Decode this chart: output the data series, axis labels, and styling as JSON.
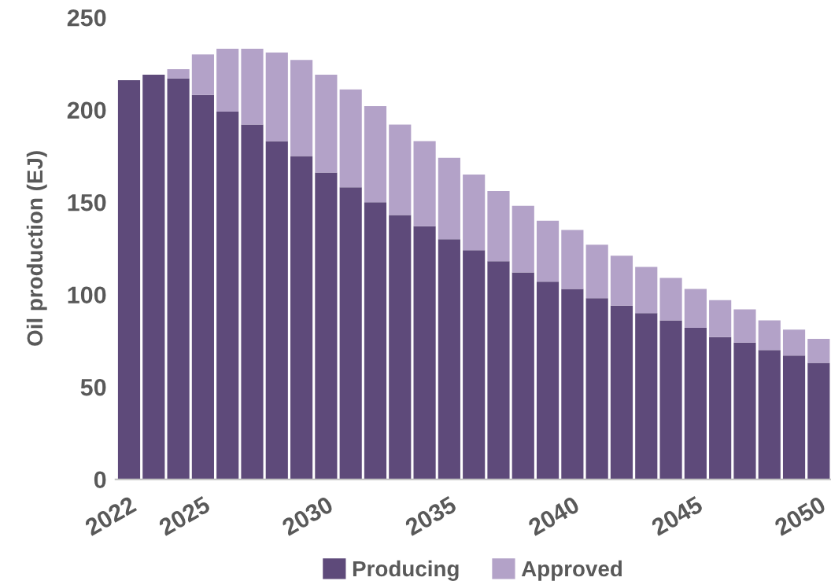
{
  "chart_data": {
    "type": "bar",
    "stacked": true,
    "ylabel": "Oil production (EJ)",
    "categories": [
      "2022",
      null,
      null,
      "2025",
      null,
      null,
      null,
      null,
      "2030",
      null,
      null,
      null,
      null,
      "2035",
      null,
      null,
      null,
      null,
      "2040",
      null,
      null,
      null,
      null,
      "2045",
      null,
      null,
      null,
      null,
      "2050"
    ],
    "series": [
      {
        "name": "Producing",
        "color": "#5e4a7a",
        "values": [
          216,
          219,
          217,
          208,
          199,
          192,
          183,
          175,
          166,
          158,
          150,
          143,
          137,
          130,
          124,
          118,
          112,
          107,
          103,
          98,
          94,
          90,
          86,
          82,
          77,
          74,
          70,
          67,
          63
        ]
      },
      {
        "name": "Approved",
        "color": "#b3a2c8",
        "values": [
          0,
          0,
          5,
          22,
          34,
          41,
          48,
          52,
          53,
          53,
          52,
          49,
          46,
          44,
          41,
          38,
          36,
          33,
          32,
          29,
          27,
          25,
          23,
          21,
          20,
          18,
          16,
          14,
          13
        ]
      }
    ],
    "ylim": [
      0,
      250
    ],
    "yticks": [
      0,
      50,
      100,
      150,
      200,
      250
    ],
    "grid": false,
    "legend": "bottom"
  }
}
